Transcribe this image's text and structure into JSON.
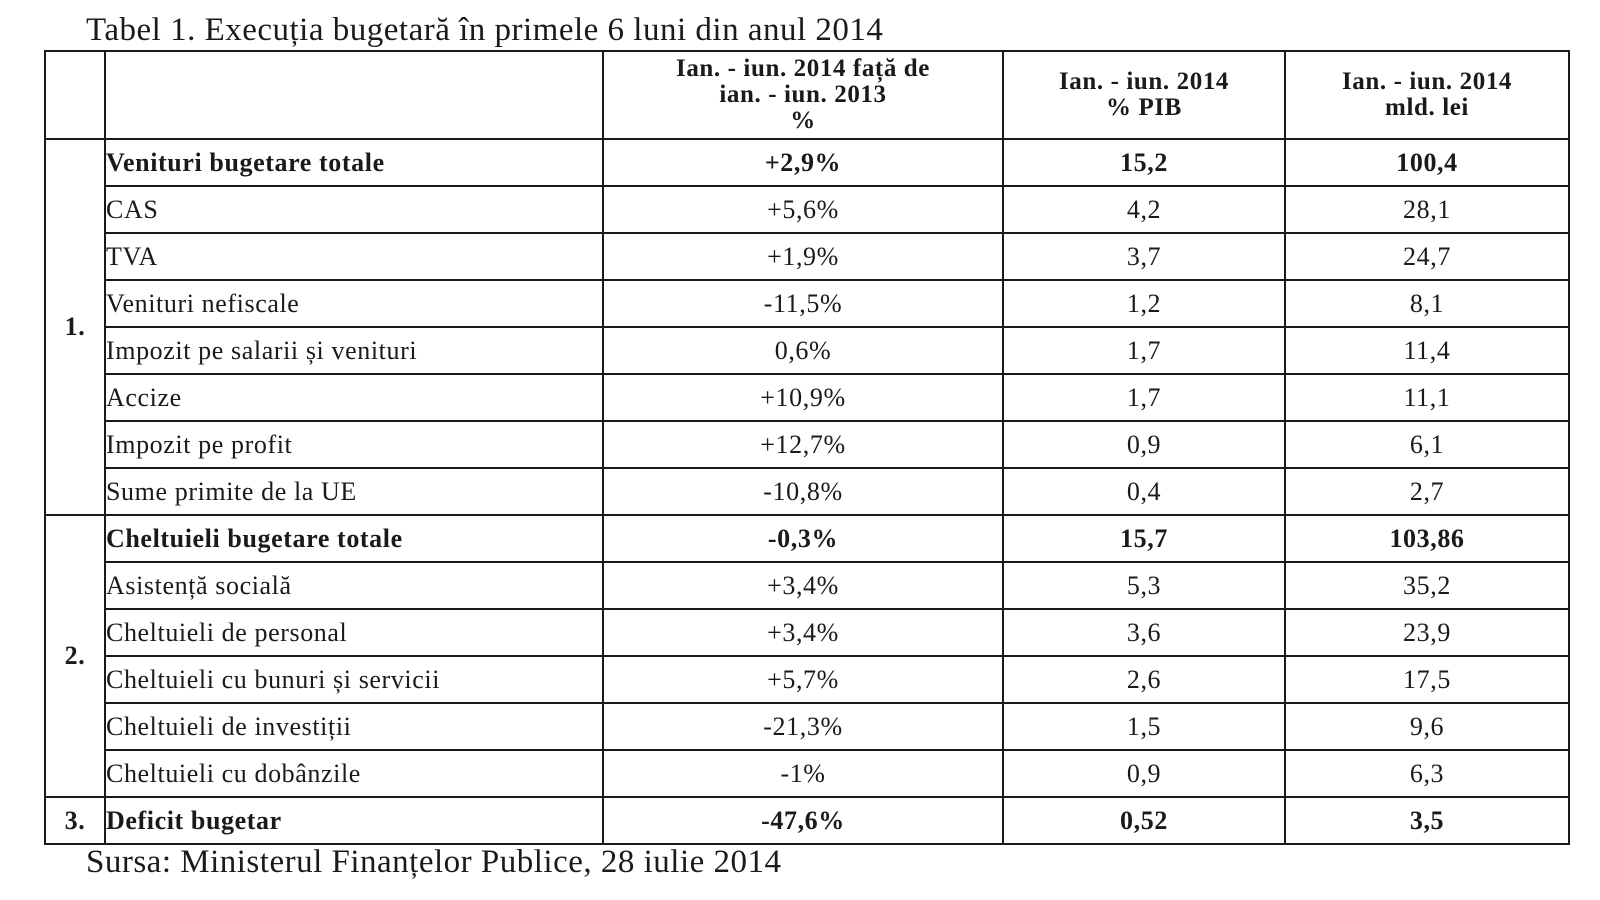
{
  "title": "Tabel 1. Execuția bugetară în primele 6 luni din anul 2014",
  "source": "Sursa: Ministerul Finanțelor Publice, 28 iulie 2014",
  "headers": {
    "num": "",
    "label": "",
    "change_line1": "Ian. - iun. 2014 față de",
    "change_line2": "ian. - iun. 2013",
    "change_line3": "%",
    "pib_line1": "Ian. - iun. 2014",
    "pib_line2": "% PIB",
    "val_line1": "Ian. - iun. 2014",
    "val_line2": "mld. lei"
  },
  "groups": [
    {
      "num": "1.",
      "rows": [
        {
          "label": "Venituri bugetare totale",
          "change": "+2,9%",
          "pib": "15,2",
          "value": "100,4",
          "bold": true
        },
        {
          "label": "CAS",
          "change": "+5,6%",
          "pib": "4,2",
          "value": "28,1",
          "bold": false
        },
        {
          "label": "TVA",
          "change": "+1,9%",
          "pib": "3,7",
          "value": "24,7",
          "bold": false
        },
        {
          "label": "Venituri nefiscale",
          "change": "-11,5%",
          "pib": "1,2",
          "value": "8,1",
          "bold": false
        },
        {
          "label": "Impozit pe salarii și venituri",
          "change": "0,6%",
          "pib": "1,7",
          "value": "11,4",
          "bold": false
        },
        {
          "label": "Accize",
          "change": "+10,9%",
          "pib": "1,7",
          "value": "11,1",
          "bold": false
        },
        {
          "label": "Impozit pe profit",
          "change": "+12,7%",
          "pib": "0,9",
          "value": "6,1",
          "bold": false
        },
        {
          "label": "Sume primite de la UE",
          "change": "-10,8%",
          "pib": "0,4",
          "value": "2,7",
          "bold": false
        }
      ]
    },
    {
      "num": "2.",
      "rows": [
        {
          "label": "Cheltuieli bugetare totale",
          "change": "-0,3%",
          "pib": "15,7",
          "value": "103,86",
          "bold": true
        },
        {
          "label": "Asistență socială",
          "change": "+3,4%",
          "pib": "5,3",
          "value": "35,2",
          "bold": false
        },
        {
          "label": "Cheltuieli de personal",
          "change": "+3,4%",
          "pib": "3,6",
          "value": "23,9",
          "bold": false
        },
        {
          "label": "Cheltuieli cu bunuri și servicii",
          "change": "+5,7%",
          "pib": "2,6",
          "value": "17,5",
          "bold": false
        },
        {
          "label": "Cheltuieli de investiții",
          "change": "-21,3%",
          "pib": "1,5",
          "value": "9,6",
          "bold": false
        },
        {
          "label": "Cheltuieli cu dobânzile",
          "change": "-1%",
          "pib": "0,9",
          "value": "6,3",
          "bold": false
        }
      ]
    },
    {
      "num": "3.",
      "rows": [
        {
          "label": "Deficit bugetar",
          "change": "-47,6%",
          "pib": "0,52",
          "value": "3,5",
          "bold": true
        }
      ]
    }
  ]
}
